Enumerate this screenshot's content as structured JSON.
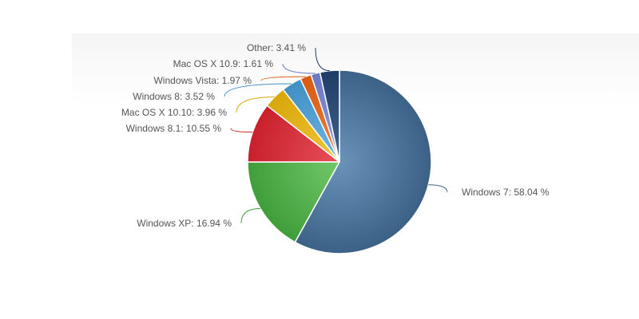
{
  "chart_data": {
    "type": "pie",
    "title": "",
    "slices": [
      {
        "name": "Windows 7",
        "value": 58.04,
        "label": "Windows 7: 58.04 %",
        "color": "#3b6186",
        "highlight": "#6a93b8"
      },
      {
        "name": "Windows XP",
        "value": 16.94,
        "label": "Windows XP: 16.94 %",
        "color": "#3f9e3a",
        "highlight": "#72c86a"
      },
      {
        "name": "Windows 8.1",
        "value": 10.55,
        "label": "Windows 8.1: 10.55 %",
        "color": "#c8202b",
        "highlight": "#e6505a"
      },
      {
        "name": "Mac OS X 10.10",
        "value": 3.96,
        "label": "Mac OS X 10.10: 3.96 %",
        "color": "#d7a60a",
        "highlight": "#f2c63a"
      },
      {
        "name": "Windows 8",
        "value": 3.52,
        "label": "Windows 8: 3.52 %",
        "color": "#3f8fc4",
        "highlight": "#72b6e2"
      },
      {
        "name": "Windows Vista",
        "value": 1.97,
        "label": "Windows Vista: 1.97 %",
        "color": "#d65a12",
        "highlight": "#f0823e"
      },
      {
        "name": "Mac OS X 10.9",
        "value": 1.61,
        "label": "Mac OS X 10.9: 1.61 %",
        "color": "#6a77c2",
        "highlight": "#939ee0"
      },
      {
        "name": "Other",
        "value": 3.41,
        "label": "Other: 3.41 %",
        "color": "#1d3d66",
        "highlight": "#3f6492"
      }
    ],
    "legend": "none"
  }
}
